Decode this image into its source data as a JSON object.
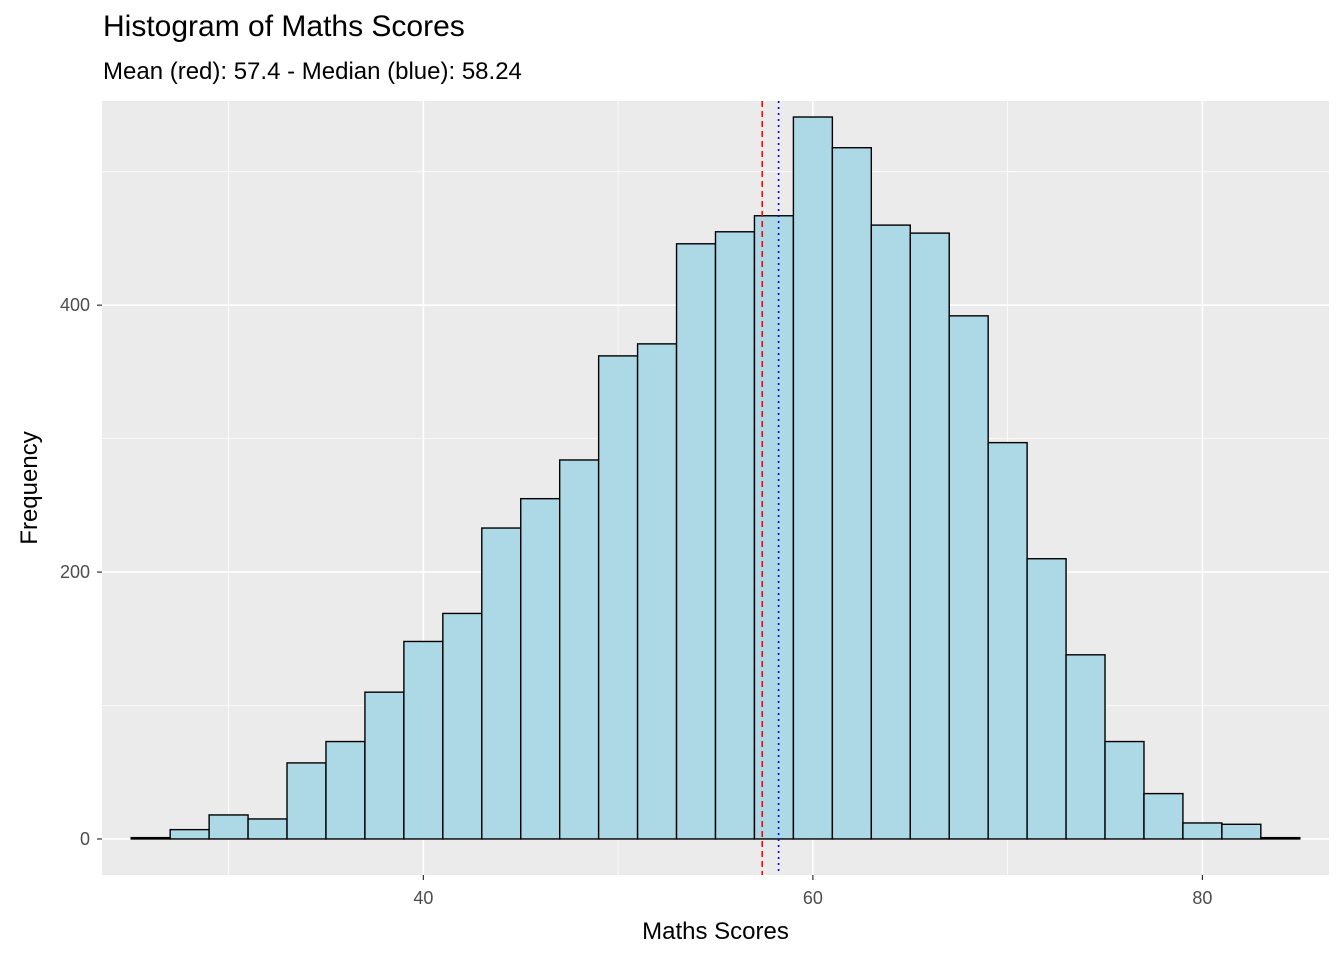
{
  "chart_data": {
    "type": "bar",
    "title": "Histogram of Maths Scores",
    "subtitle": "Mean (red): 57.4 - Median (blue): 58.24",
    "xlabel": "Maths Scores",
    "ylabel": "Frequency",
    "xlim": [
      23.5,
      86.5
    ],
    "ylim": [
      -27,
      553
    ],
    "x_ticks": [
      40,
      60,
      80
    ],
    "y_ticks": [
      0,
      200,
      400
    ],
    "bin_width": 2,
    "bins": [
      {
        "x": 26,
        "count": 1
      },
      {
        "x": 28,
        "count": 7
      },
      {
        "x": 30,
        "count": 18
      },
      {
        "x": 32,
        "count": 15
      },
      {
        "x": 34,
        "count": 57
      },
      {
        "x": 36,
        "count": 73
      },
      {
        "x": 38,
        "count": 110
      },
      {
        "x": 40,
        "count": 148
      },
      {
        "x": 42,
        "count": 169
      },
      {
        "x": 44,
        "count": 233
      },
      {
        "x": 46,
        "count": 255
      },
      {
        "x": 48,
        "count": 284
      },
      {
        "x": 50,
        "count": 362
      },
      {
        "x": 52,
        "count": 371
      },
      {
        "x": 54,
        "count": 446
      },
      {
        "x": 56,
        "count": 455
      },
      {
        "x": 58,
        "count": 467
      },
      {
        "x": 60,
        "count": 541
      },
      {
        "x": 62,
        "count": 518
      },
      {
        "x": 64,
        "count": 460
      },
      {
        "x": 66,
        "count": 454
      },
      {
        "x": 68,
        "count": 392
      },
      {
        "x": 70,
        "count": 297
      },
      {
        "x": 72,
        "count": 210
      },
      {
        "x": 74,
        "count": 138
      },
      {
        "x": 76,
        "count": 73
      },
      {
        "x": 78,
        "count": 34
      },
      {
        "x": 80,
        "count": 12
      },
      {
        "x": 82,
        "count": 11
      },
      {
        "x": 84,
        "count": 1
      }
    ],
    "reference_lines": [
      {
        "value": 57.4,
        "color": "#ff0000",
        "style": "dashed"
      },
      {
        "value": 58.24,
        "color": "#0000ff",
        "style": "dotted"
      }
    ],
    "bar_fill": "#add8e6",
    "bar_outline": "#000000",
    "panel_background": "#ebebeb",
    "grid": true,
    "grid_color": "#ffffff",
    "legend": "none"
  }
}
